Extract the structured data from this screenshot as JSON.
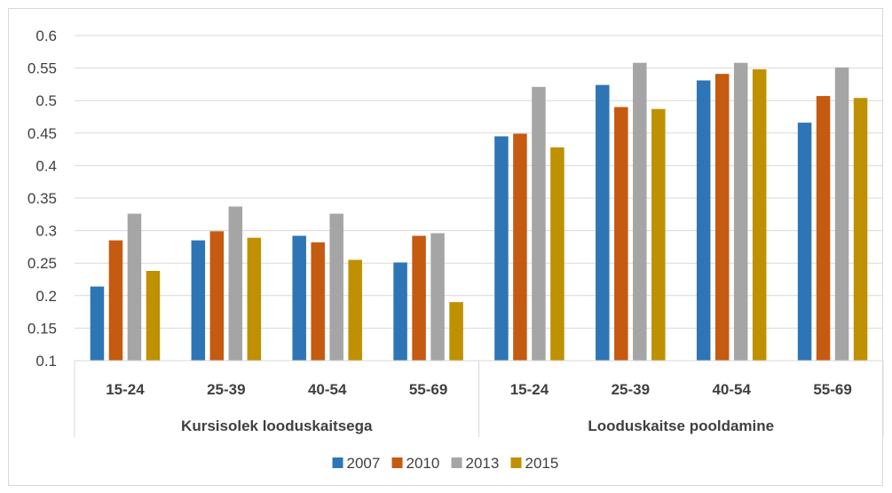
{
  "chart_data": {
    "type": "bar",
    "groups": [
      {
        "label": "Kursisolek looduskaitsega",
        "categories": [
          "15-24",
          "25-39",
          "40-54",
          "55-69"
        ]
      },
      {
        "label": "Looduskaitse pooldamine",
        "categories": [
          "15-24",
          "25-39",
          "40-54",
          "55-69"
        ]
      }
    ],
    "series": [
      {
        "name": "2007",
        "color": "#2e75b6",
        "values": [
          0.214,
          0.285,
          0.292,
          0.251,
          0.445,
          0.524,
          0.531,
          0.466
        ]
      },
      {
        "name": "2010",
        "color": "#c55a11",
        "values": [
          0.285,
          0.299,
          0.282,
          0.292,
          0.449,
          0.49,
          0.541,
          0.507
        ]
      },
      {
        "name": "2013",
        "color": "#a5a5a5",
        "values": [
          0.326,
          0.337,
          0.326,
          0.296,
          0.521,
          0.558,
          0.558,
          0.551
        ]
      },
      {
        "name": "2015",
        "color": "#bf9000",
        "values": [
          0.238,
          0.289,
          0.255,
          0.19,
          0.428,
          0.487,
          0.548,
          0.504
        ]
      }
    ],
    "ylim": [
      0.1,
      0.6
    ],
    "yticks": [
      "0.1",
      "0.15",
      "0.2",
      "0.25",
      "0.3",
      "0.35",
      "0.4",
      "0.45",
      "0.5",
      "0.55",
      "0.6"
    ],
    "grid": true,
    "legend_position": "bottom",
    "title": "",
    "xlabel": "",
    "ylabel": ""
  }
}
